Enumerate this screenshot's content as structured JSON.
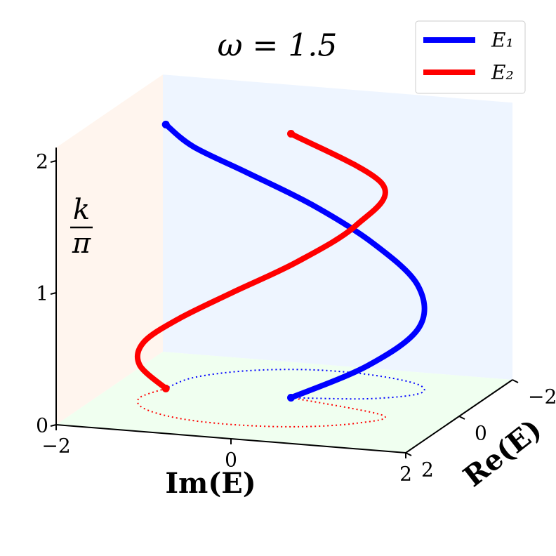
{
  "chart_data": {
    "type": "line3d",
    "title": "ω = 1.5",
    "xlabel": "Im(E)",
    "ylabel": "Re(E)",
    "zlabel_numerator": "k",
    "zlabel_denominator": "π",
    "xlim": [
      -2,
      2
    ],
    "ylim": [
      -2,
      2
    ],
    "zlim": [
      0,
      2.1
    ],
    "xticks": [
      {
        "value": -2,
        "label": "−2"
      },
      0,
      2
    ],
    "yticks": [
      {
        "value": -2,
        "label": "−2"
      },
      0,
      2
    ],
    "zticks": [
      0,
      1,
      2
    ],
    "legend": "upper right",
    "series": [
      {
        "name": "E₁",
        "color": "#0000ff",
        "x": [
          0,
          0.8,
          1.25,
          1.1,
          0.5,
          -0.2,
          -0.85,
          -1.3,
          -1.42
        ],
        "y": [
          -0.25,
          -0.5,
          -0.95,
          -1.4,
          -1.68,
          -1.7,
          -1.4,
          -0.85,
          -0.21
        ],
        "z": [
          0,
          0.25,
          0.5,
          0.75,
          1,
          1.25,
          1.5,
          1.75,
          2
        ]
      },
      {
        "name": "E₂",
        "color": "#ff0000",
        "x": [
          -1.42,
          -1.55,
          -1.35,
          -0.85,
          -0.2,
          0.5,
          1.05,
          1.2,
          0
        ],
        "y": [
          -0.21,
          0.35,
          0.85,
          1.2,
          1.3,
          1.15,
          0.75,
          0.25,
          -0.25
        ],
        "z": [
          0,
          0.25,
          0.5,
          0.75,
          1,
          1.25,
          1.5,
          1.75,
          2
        ]
      }
    ]
  }
}
